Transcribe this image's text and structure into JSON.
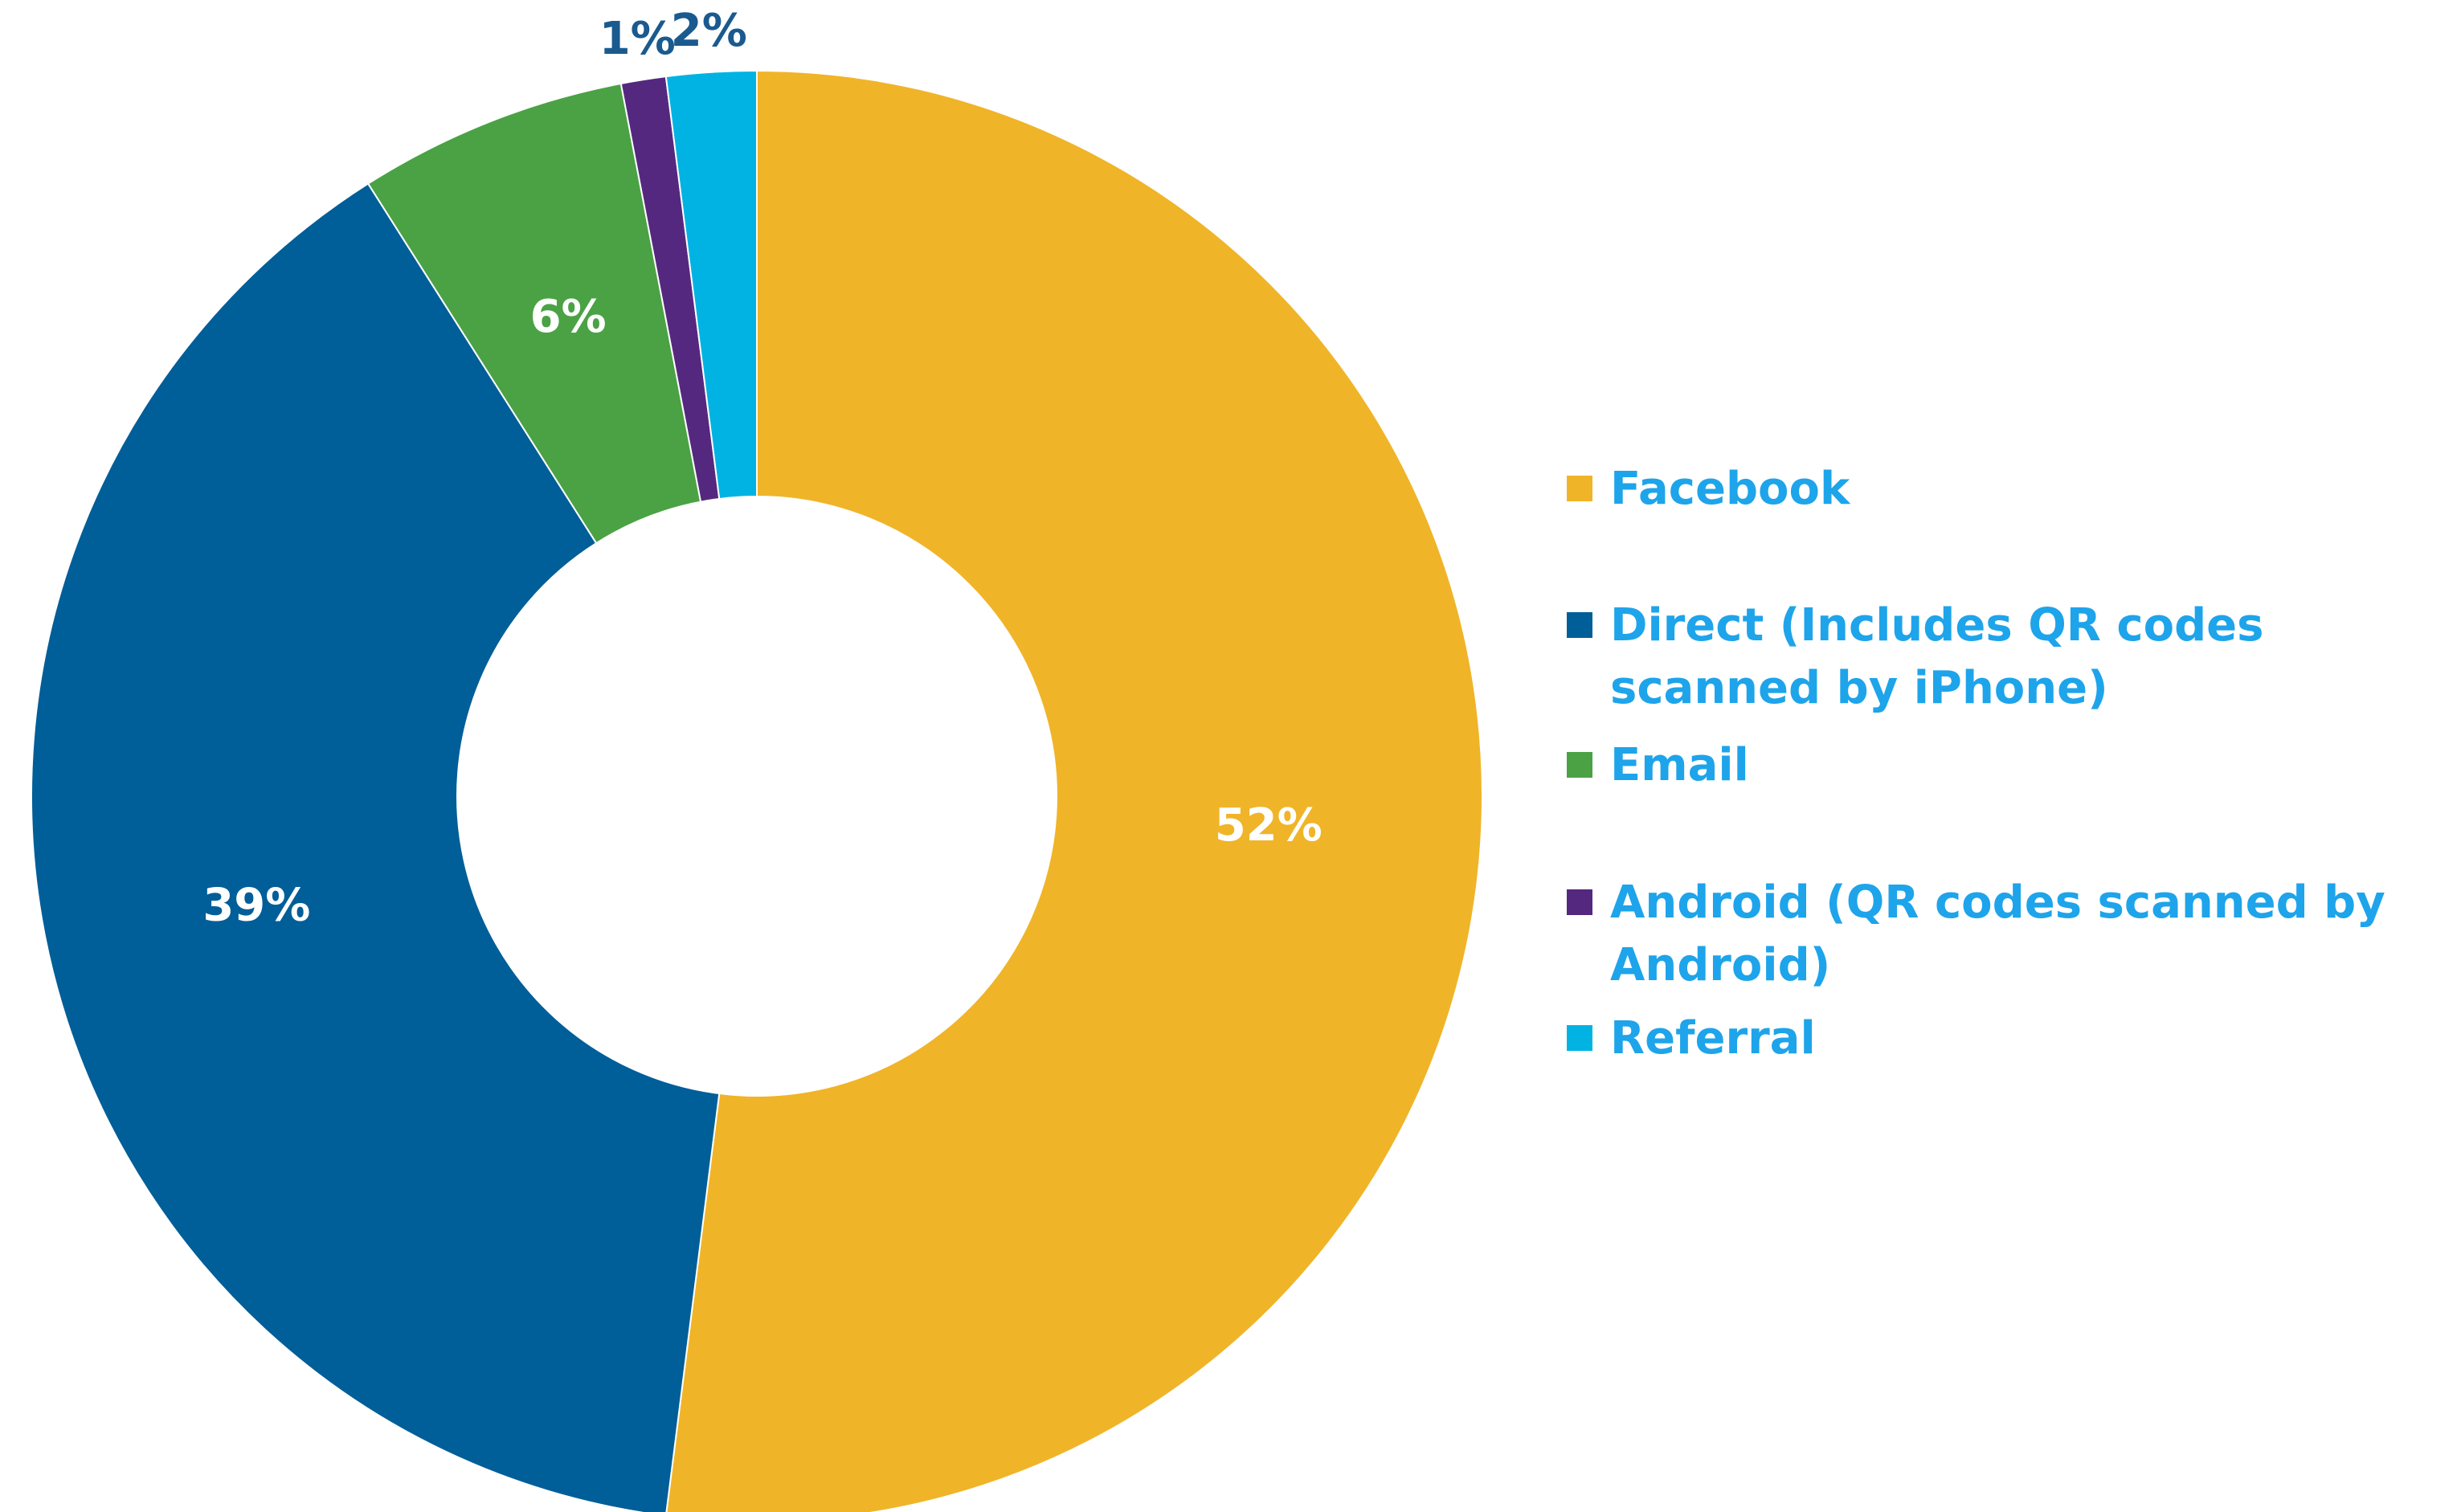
{
  "chart_data": {
    "type": "donut",
    "categories": [
      "Facebook",
      "Direct (Includes QR codes scanned by iPhone)",
      "Email",
      "Android (QR codes scanned by Android)",
      "Referral"
    ],
    "values": [
      52,
      39,
      6,
      1,
      2
    ],
    "value_labels": [
      "52%",
      "39%",
      "6%",
      "1%",
      "2%"
    ],
    "colors": [
      "#f0b428",
      "#005e98",
      "#4aa244",
      "#55287f",
      "#00b3e3"
    ],
    "legend": "right"
  }
}
